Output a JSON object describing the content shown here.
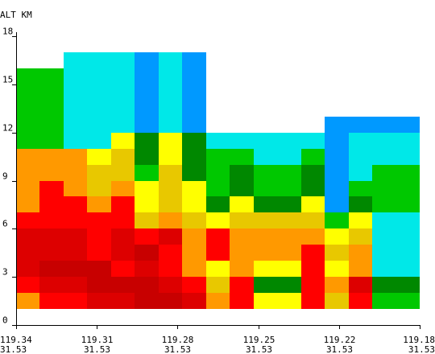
{
  "colors": {
    "palette": [
      "#FF9900",
      "#FF0000",
      "#DD0000",
      "#C80000",
      "#FFFF00",
      "#E8C800",
      "#00C800",
      "#008800",
      "#00E8E8",
      "#0099FF"
    ]
  },
  "chart_data": {
    "type": "heatmap",
    "title": "",
    "ylabel": "ALT KM",
    "xlabel": "",
    "ylim": [
      0,
      18
    ],
    "y_ticks": [
      {
        "label": "0",
        "value": 0
      },
      {
        "label": "3",
        "value": 3
      },
      {
        "label": "6",
        "value": 6
      },
      {
        "label": "9",
        "value": 9
      },
      {
        "label": "12",
        "value": 12
      },
      {
        "label": "15",
        "value": 15
      },
      {
        "label": "18",
        "value": 18
      }
    ],
    "x_ticks": [
      {
        "lon": "119.34",
        "lat": "31.53"
      },
      {
        "lon": "119.31",
        "lat": "31.53"
      },
      {
        "lon": "119.28",
        "lat": "31.53"
      },
      {
        "lon": "119.25",
        "lat": "31.53"
      },
      {
        "lon": "119.22",
        "lat": "31.53"
      },
      {
        "lon": "119.18",
        "lat": "31.53"
      }
    ],
    "columns": 17,
    "row_altitudes_km": [
      1,
      2,
      3,
      4,
      5,
      6,
      7,
      8,
      9,
      10,
      11,
      12,
      13,
      14,
      15,
      16,
      17
    ],
    "grid": [
      [
        0,
        1,
        1,
        2,
        2,
        3,
        3,
        2,
        0,
        1,
        4,
        4,
        1,
        5,
        1,
        6,
        6
      ],
      [
        1,
        2,
        2,
        3,
        3,
        3,
        2,
        1,
        5,
        1,
        7,
        7,
        1,
        0,
        2,
        7,
        7
      ],
      [
        2,
        3,
        3,
        3,
        1,
        2,
        1,
        0,
        4,
        0,
        4,
        4,
        1,
        4,
        0,
        8,
        8
      ],
      [
        2,
        2,
        2,
        1,
        2,
        3,
        1,
        0,
        1,
        0,
        0,
        0,
        1,
        5,
        0,
        8,
        8
      ],
      [
        2,
        2,
        2,
        1,
        2,
        1,
        2,
        0,
        1,
        0,
        0,
        0,
        0,
        4,
        5,
        8,
        8
      ],
      [
        1,
        1,
        1,
        1,
        1,
        5,
        0,
        5,
        4,
        5,
        5,
        5,
        5,
        6,
        4,
        8,
        8
      ],
      [
        0,
        1,
        1,
        0,
        1,
        4,
        5,
        4,
        7,
        4,
        7,
        7,
        4,
        9,
        7,
        6,
        6
      ],
      [
        0,
        1,
        0,
        5,
        0,
        4,
        5,
        4,
        6,
        7,
        6,
        6,
        7,
        9,
        6,
        6,
        6
      ],
      [
        0,
        0,
        0,
        5,
        5,
        6,
        5,
        7,
        6,
        7,
        6,
        6,
        7,
        9,
        8,
        6,
        6
      ],
      [
        0,
        0,
        0,
        4,
        5,
        7,
        4,
        7,
        6,
        6,
        8,
        8,
        6,
        9,
        8,
        8,
        8
      ],
      [
        6,
        6,
        8,
        8,
        4,
        7,
        4,
        7,
        8,
        8,
        8,
        8,
        8,
        9,
        8,
        8,
        8
      ],
      [
        6,
        6,
        8,
        8,
        8,
        9,
        8,
        9,
        null,
        null,
        null,
        null,
        null,
        9,
        9,
        9,
        9
      ],
      [
        6,
        6,
        8,
        8,
        8,
        9,
        8,
        9,
        null,
        null,
        null,
        null,
        null,
        null,
        null,
        null,
        null
      ],
      [
        6,
        6,
        8,
        8,
        8,
        9,
        8,
        9,
        null,
        null,
        null,
        null,
        null,
        null,
        null,
        null,
        null
      ],
      [
        6,
        6,
        8,
        8,
        8,
        9,
        8,
        9,
        null,
        null,
        null,
        null,
        null,
        null,
        null,
        null,
        null
      ],
      [
        null,
        null,
        8,
        8,
        8,
        9,
        8,
        9,
        null,
        null,
        null,
        null,
        null,
        null,
        null,
        null,
        null
      ],
      [
        null,
        null,
        null,
        null,
        null,
        null,
        null,
        null,
        null,
        null,
        null,
        null,
        null,
        null,
        null,
        null,
        null
      ]
    ],
    "legend": "none",
    "grid_lines": false
  }
}
